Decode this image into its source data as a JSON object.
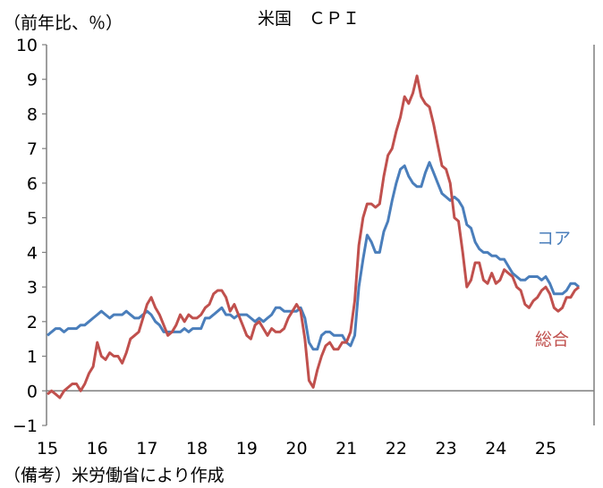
{
  "chart_data": {
    "type": "line",
    "title": "米国　ＣＰＩ",
    "ylabel": "（前年比、％）",
    "note": "（備考）米労働省により作成",
    "ylim": [
      -1,
      10
    ],
    "yticks": [
      "10",
      "9",
      "8",
      "7",
      "6",
      "5",
      "4",
      "3",
      "2",
      "1",
      "0",
      "−1"
    ],
    "xtick_labels": [
      "15",
      "16",
      "17",
      "18",
      "19",
      "20",
      "21",
      "22",
      "23",
      "24",
      "25"
    ],
    "x_start": "2015-01",
    "frequency": "monthly",
    "series": [
      {
        "name": "コア",
        "color": "#4a7ebb",
        "values": [
          1.6,
          1.7,
          1.8,
          1.8,
          1.7,
          1.8,
          1.8,
          1.8,
          1.9,
          1.9,
          2.0,
          2.1,
          2.2,
          2.3,
          2.2,
          2.1,
          2.2,
          2.2,
          2.2,
          2.3,
          2.2,
          2.1,
          2.1,
          2.2,
          2.3,
          2.2,
          2.0,
          1.9,
          1.7,
          1.7,
          1.7,
          1.7,
          1.7,
          1.8,
          1.7,
          1.8,
          1.8,
          1.8,
          2.1,
          2.1,
          2.2,
          2.3,
          2.4,
          2.2,
          2.2,
          2.1,
          2.2,
          2.2,
          2.2,
          2.1,
          2.0,
          2.1,
          2.0,
          2.1,
          2.2,
          2.4,
          2.4,
          2.3,
          2.3,
          2.3,
          2.3,
          2.4,
          2.1,
          1.4,
          1.2,
          1.2,
          1.6,
          1.7,
          1.7,
          1.6,
          1.6,
          1.6,
          1.4,
          1.3,
          1.6,
          3.0,
          3.8,
          4.5,
          4.3,
          4.0,
          4.0,
          4.6,
          4.9,
          5.5,
          6.0,
          6.4,
          6.5,
          6.2,
          6.0,
          5.9,
          5.9,
          6.3,
          6.6,
          6.3,
          6.0,
          5.7,
          5.6,
          5.5,
          5.6,
          5.5,
          5.3,
          4.8,
          4.7,
          4.3,
          4.1,
          4.0,
          4.0,
          3.9,
          3.9,
          3.8,
          3.8,
          3.6,
          3.4,
          3.3,
          3.2,
          3.2,
          3.3,
          3.3,
          3.3,
          3.2,
          3.3,
          3.1,
          2.8,
          2.8,
          2.8,
          2.9,
          3.1,
          3.1,
          3.0
        ]
      },
      {
        "name": "総合",
        "color": "#c0504d",
        "values": [
          -0.1,
          0.0,
          -0.1,
          -0.2,
          0.0,
          0.1,
          0.2,
          0.2,
          0.0,
          0.2,
          0.5,
          0.7,
          1.4,
          1.0,
          0.9,
          1.1,
          1.0,
          1.0,
          0.8,
          1.1,
          1.5,
          1.6,
          1.7,
          2.1,
          2.5,
          2.7,
          2.4,
          2.2,
          1.9,
          1.6,
          1.7,
          1.9,
          2.2,
          2.0,
          2.2,
          2.1,
          2.1,
          2.2,
          2.4,
          2.5,
          2.8,
          2.9,
          2.9,
          2.7,
          2.3,
          2.5,
          2.2,
          1.9,
          1.6,
          1.5,
          1.9,
          2.0,
          1.8,
          1.6,
          1.8,
          1.7,
          1.7,
          1.8,
          2.1,
          2.3,
          2.5,
          2.3,
          1.5,
          0.3,
          0.1,
          0.6,
          1.0,
          1.3,
          1.4,
          1.2,
          1.2,
          1.4,
          1.4,
          1.7,
          2.6,
          4.2,
          5.0,
          5.4,
          5.4,
          5.3,
          5.4,
          6.2,
          6.8,
          7.0,
          7.5,
          7.9,
          8.5,
          8.3,
          8.6,
          9.1,
          8.5,
          8.3,
          8.2,
          7.7,
          7.1,
          6.5,
          6.4,
          6.0,
          5.0,
          4.9,
          4.0,
          3.0,
          3.2,
          3.7,
          3.7,
          3.2,
          3.1,
          3.4,
          3.1,
          3.2,
          3.5,
          3.4,
          3.3,
          3.0,
          2.9,
          2.5,
          2.4,
          2.6,
          2.7,
          2.9,
          3.0,
          2.8,
          2.4,
          2.3,
          2.4,
          2.7,
          2.7,
          2.9,
          3.0
        ]
      }
    ],
    "grid": false
  }
}
